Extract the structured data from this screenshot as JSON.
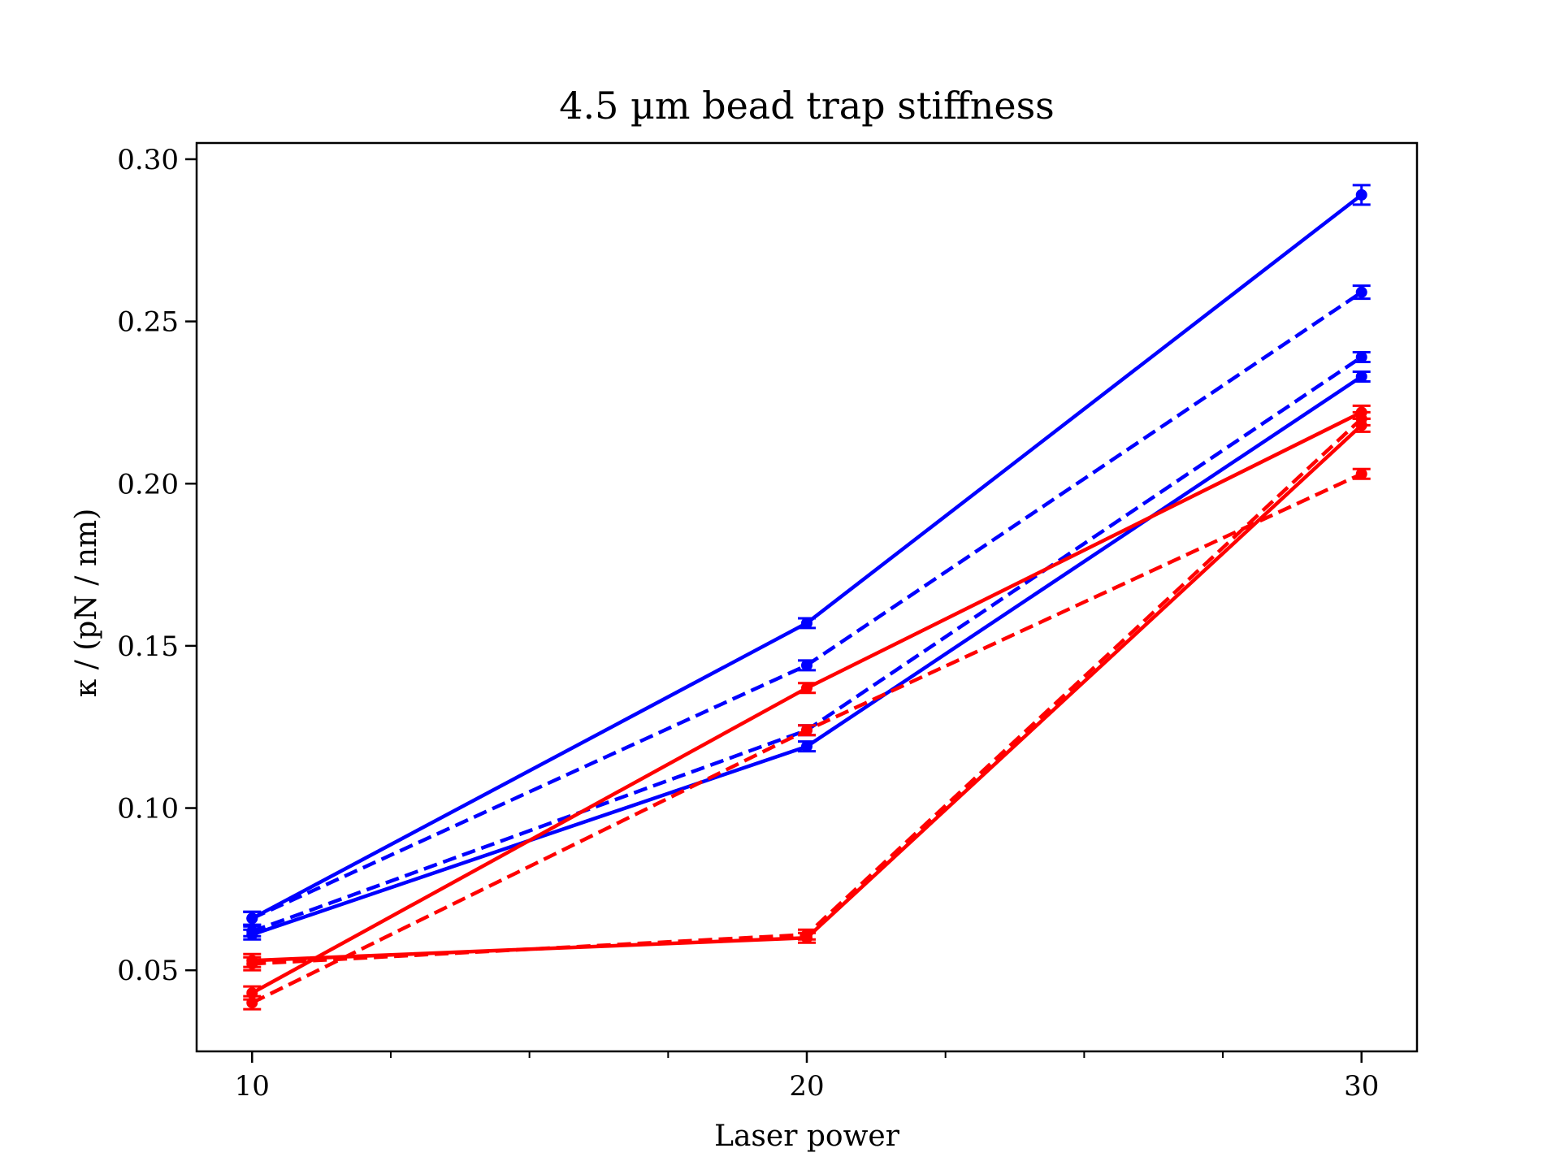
{
  "chart_data": {
    "type": "line",
    "title": "4.5 µm bead trap stiffness",
    "xlabel": "Laser power",
    "ylabel": "κ / (pN / nm)",
    "x": [
      10,
      20,
      30
    ],
    "xlim": [
      9,
      31
    ],
    "ylim": [
      0.025,
      0.305
    ],
    "xticks": [
      10,
      20,
      30
    ],
    "xticklabels": [
      "10",
      "20",
      "30"
    ],
    "xminorticks": [
      12.5,
      15,
      17.5,
      22.5,
      25,
      27.5
    ],
    "yticks": [
      0.05,
      0.1,
      0.15,
      0.2,
      0.25,
      0.3
    ],
    "yticklabels": [
      "0.05",
      "0.10",
      "0.15",
      "0.20",
      "0.25",
      "0.30"
    ],
    "grid": false,
    "legend": false,
    "colors": {
      "blue": "#0000ff",
      "red": "#ff0000",
      "axes": "#000000",
      "background": "#ffffff"
    },
    "series": [
      {
        "color": "blue",
        "linestyle": "solid",
        "values": [
          0.066,
          0.157,
          0.289
        ],
        "errors": [
          0.002,
          0.0015,
          0.003
        ]
      },
      {
        "color": "blue",
        "linestyle": "dashed",
        "values": [
          0.066,
          0.144,
          0.259
        ],
        "errors": [
          0.002,
          0.0015,
          0.002
        ]
      },
      {
        "color": "blue",
        "linestyle": "dashed",
        "values": [
          0.062,
          0.124,
          0.239
        ],
        "errors": [
          0.0015,
          0.0015,
          0.0015
        ]
      },
      {
        "color": "blue",
        "linestyle": "solid",
        "values": [
          0.061,
          0.119,
          0.233
        ],
        "errors": [
          0.0015,
          0.0015,
          0.0015
        ]
      },
      {
        "color": "red",
        "linestyle": "solid",
        "values": [
          0.043,
          0.137,
          0.222
        ],
        "errors": [
          0.002,
          0.0015,
          0.002
        ]
      },
      {
        "color": "red",
        "linestyle": "dashed",
        "values": [
          0.04,
          0.124,
          0.203
        ],
        "errors": [
          0.002,
          0.0015,
          0.0015
        ]
      },
      {
        "color": "red",
        "linestyle": "solid",
        "values": [
          0.053,
          0.06,
          0.218
        ],
        "errors": [
          0.002,
          0.0015,
          0.002
        ]
      },
      {
        "color": "red",
        "linestyle": "dashed",
        "values": [
          0.052,
          0.061,
          0.22
        ],
        "errors": [
          0.002,
          0.0015,
          0.002
        ]
      }
    ]
  }
}
